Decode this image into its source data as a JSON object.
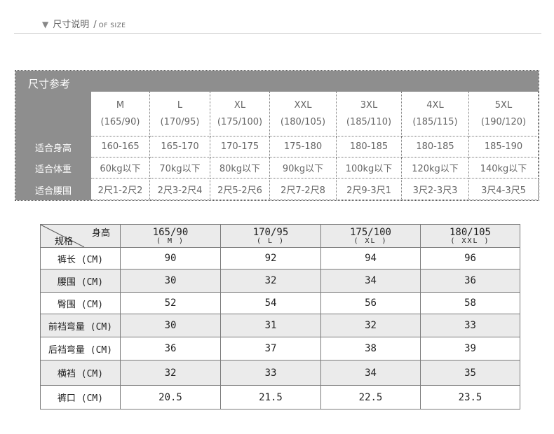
{
  "header": {
    "title": "尺寸说明",
    "separator": "/",
    "subtitle": "OF SIZE"
  },
  "reference": {
    "title": "尺寸参考",
    "sizes": [
      "M",
      "L",
      "XL",
      "XXL",
      "3XL",
      "4XL",
      "5XL"
    ],
    "codes": [
      "(165/90)",
      "(170/95)",
      "(175/100)",
      "(180/105)",
      "(185/110)",
      "(185/115)",
      "(190/120)"
    ],
    "rows": [
      {
        "label": "适合身高",
        "values": [
          "160-165",
          "165-170",
          "170-175",
          "175-180",
          "180-185",
          "180-185",
          "185-190"
        ]
      },
      {
        "label": "适合体重",
        "values": [
          "60kg以下",
          "70kg以下",
          "80kg以下",
          "90kg以下",
          "100kg以下",
          "120kg以下",
          "140kg以下"
        ]
      },
      {
        "label": "适合腰围",
        "values": [
          "2尺1-2尺2",
          "2尺3-2尺4",
          "2尺5-2尺6",
          "2尺7-2尺8",
          "2尺9-3尺1",
          "3尺2-3尺3",
          "3尺4-3尺5"
        ]
      }
    ]
  },
  "measurements": {
    "corner_top": "身高",
    "corner_bottom": "规格",
    "columns": [
      {
        "size": "165/90",
        "code": "( M )"
      },
      {
        "size": "170/95",
        "code": "( L )"
      },
      {
        "size": "175/100",
        "code": "( XL )"
      },
      {
        "size": "180/105",
        "code": "( XXL )"
      }
    ],
    "rows": [
      {
        "label": "裤长 (CM)",
        "values": [
          "90",
          "92",
          "94",
          "96"
        ]
      },
      {
        "label": "腰围 (CM)",
        "values": [
          "30",
          "32",
          "34",
          "36"
        ]
      },
      {
        "label": "臀围 (CM)",
        "values": [
          "52",
          "54",
          "56",
          "58"
        ]
      },
      {
        "label": "前裆弯量 (CM)",
        "values": [
          "30",
          "31",
          "32",
          "33"
        ]
      },
      {
        "label": "后裆弯量 (CM)",
        "values": [
          "36",
          "37",
          "38",
          "39"
        ]
      },
      {
        "label": "横裆 (CM)",
        "values": [
          "32",
          "33",
          "34",
          "35"
        ]
      },
      {
        "label": "裤口 (CM)",
        "values": [
          "20.5",
          "21.5",
          "22.5",
          "23.5"
        ]
      }
    ]
  }
}
